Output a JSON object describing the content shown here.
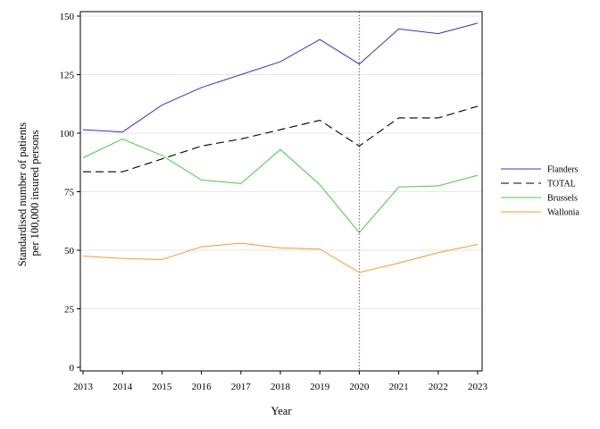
{
  "chart_data": {
    "type": "line",
    "xlabel": "Year",
    "ylabel_lines": [
      "Standardised number of patients",
      "per 100,000 insured persons"
    ],
    "x": [
      "2013",
      "2014",
      "2015",
      "2016",
      "2017",
      "2018",
      "2019",
      "2020",
      "2021",
      "2022",
      "2023"
    ],
    "ylim": [
      0,
      150
    ],
    "yticks": [
      "0",
      "25",
      "50",
      "75",
      "100",
      "125",
      "150"
    ],
    "grid": "horizontal",
    "reference_line": {
      "x": "2020",
      "style": "dotted",
      "color": "#9b4a8c"
    },
    "legend_position": "right",
    "series": [
      {
        "name": "Flanders",
        "color": "#3333cc",
        "dash": "solid",
        "values": [
          101.5,
          100.5,
          112,
          119.5,
          125,
          130.5,
          140,
          129.5,
          144.5,
          142.5,
          147
        ]
      },
      {
        "name": "TOTAL",
        "color": "#000000",
        "dash": "dashed",
        "values": [
          83.5,
          83.5,
          89,
          94.5,
          97.5,
          101.5,
          105.5,
          94.5,
          106.5,
          106.5,
          111.5
        ]
      },
      {
        "name": "Brussels",
        "color": "#44cc44",
        "dash": "solid",
        "values": [
          89.5,
          97.5,
          90.5,
          80,
          78.5,
          93,
          78,
          57.5,
          77,
          77.5,
          82
        ]
      },
      {
        "name": "Wallonia",
        "color": "#f39c24",
        "dash": "solid",
        "values": [
          47.5,
          46.5,
          46,
          51.5,
          53,
          51,
          50.5,
          40.5,
          44.5,
          49,
          52.5
        ]
      }
    ]
  }
}
